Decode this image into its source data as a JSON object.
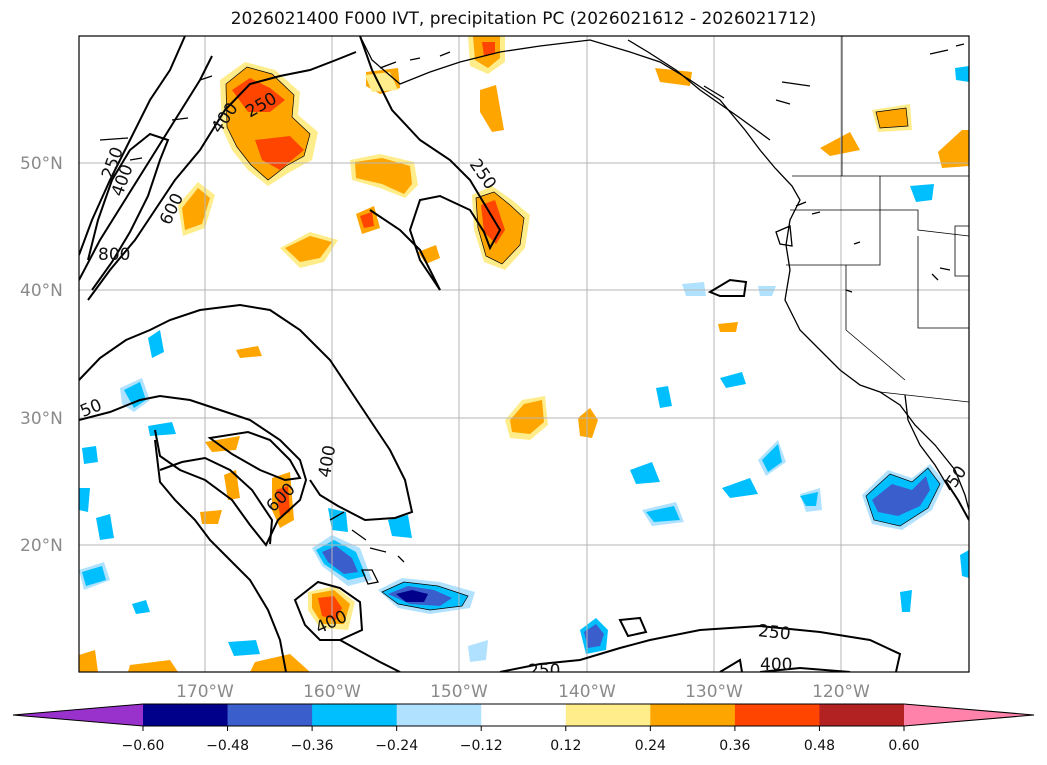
{
  "title": "2026021400 F000 IVT, precipitation PC (2026021612 - 2026021712)",
  "axes": {
    "lat_labels": [
      "50°N",
      "40°N",
      "30°N",
      "20°N"
    ],
    "lat_values": [
      50,
      40,
      30,
      20
    ],
    "lon_labels": [
      "170°W",
      "160°W",
      "150°W",
      "140°W",
      "130°W",
      "120°W"
    ],
    "lon_values": [
      -170,
      -160,
      -150,
      -140,
      -130,
      -120
    ],
    "lon_range": [
      -180,
      -110
    ],
    "lat_range": [
      10,
      60
    ],
    "grid": true
  },
  "ivt_contour_labels": [
    "250",
    "400",
    "250",
    "400",
    "600",
    "800",
    "250",
    "50",
    "400",
    "600",
    "400",
    "250",
    "400",
    "250",
    "50"
  ],
  "colorbar": {
    "ticks": [
      "−0.60",
      "−0.48",
      "−0.36",
      "−0.24",
      "−0.12",
      "0.12",
      "0.24",
      "0.36",
      "0.48",
      "0.60"
    ],
    "colors": [
      "#9932cc",
      "#00008b",
      "#3a5fcd",
      "#00bfff",
      "#b0e2ff",
      "#ffffff",
      "#ffec8b",
      "#ffa500",
      "#ff4500",
      "#b22222",
      "#ff82ab"
    ],
    "extend": "both"
  }
}
